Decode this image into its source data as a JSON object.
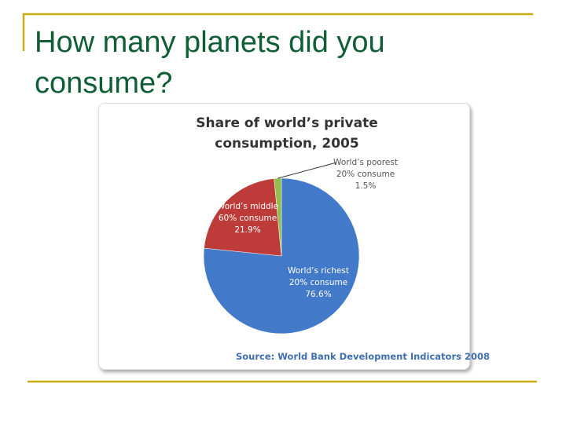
{
  "slide_title": "How many planets did you consume?",
  "chart_data": {
    "type": "pie",
    "title": "Share of world’s private consumption, 2005",
    "categories": [
      "World’s richest 20% consume",
      "World’s middle 60% consume",
      "World’s poorest 20% consume"
    ],
    "values": [
      76.6,
      21.9,
      1.5
    ],
    "value_labels": [
      "76.6%",
      "21.9%",
      "1.5%"
    ],
    "colors": [
      "#4279c8",
      "#bd3c3a",
      "#93bf4f"
    ],
    "source": "Source: World Bank Development Indicators 2008"
  }
}
